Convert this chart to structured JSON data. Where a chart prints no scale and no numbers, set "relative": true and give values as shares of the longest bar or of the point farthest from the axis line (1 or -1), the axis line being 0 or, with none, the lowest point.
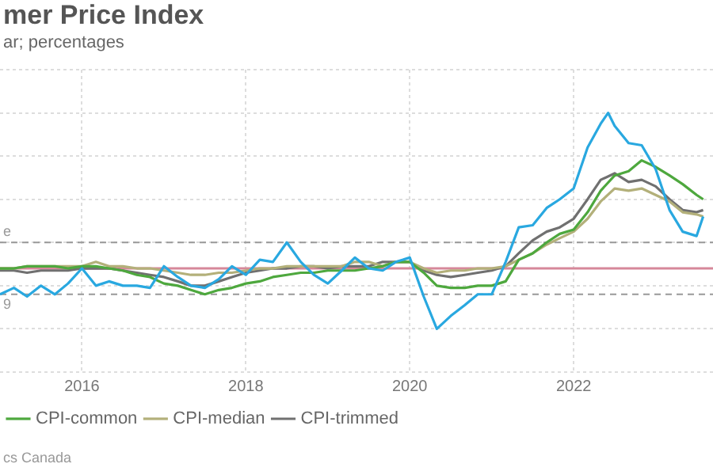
{
  "chart_data": {
    "type": "line",
    "title": "mer Price Index",
    "subtitle": "ar; percentages",
    "annotations": [
      "cs Canada",
      {
        "text": "9",
        "x": 2015.0,
        "y": 0.16
      }
    ],
    "relative": true,
    "x": [
      2015.0,
      2015.17,
      2015.33,
      2015.5,
      2015.67,
      2015.83,
      2016.0,
      2016.17,
      2016.33,
      2016.5,
      2016.67,
      2016.83,
      2017.0,
      2017.17,
      2017.33,
      2017.5,
      2017.67,
      2017.83,
      2018.0,
      2018.17,
      2018.33,
      2018.5,
      2018.67,
      2018.83,
      2019.0,
      2019.17,
      2019.33,
      2019.5,
      2019.67,
      2019.83,
      2020.0,
      2020.17,
      2020.33,
      2020.5,
      2020.67,
      2020.83,
      2021.0,
      2021.17,
      2021.33,
      2021.5,
      2021.67,
      2021.83,
      2022.0,
      2022.17,
      2022.33,
      2022.5,
      2022.67,
      2022.83,
      2023.0,
      2023.17,
      2023.33,
      2023.5,
      2023.58
    ],
    "xlim": [
      2015.0,
      2023.7
    ],
    "xticks": [
      2016,
      2018,
      2020,
      2022
    ],
    "series": [
      {
        "color": "#29a8e0",
        "x": [
          2015.0,
          2015.17,
          2015.33,
          2015.5,
          2015.67,
          2015.83,
          2016.0,
          2016.17,
          2016.33,
          2016.5,
          2016.67,
          2016.83,
          2017.0,
          2017.17,
          2017.33,
          2017.5,
          2017.67,
          2017.83,
          2018.0,
          2018.17,
          2018.33,
          2018.5,
          2018.67,
          2018.83,
          2019.0,
          2019.17,
          2019.33,
          2019.5,
          2019.67,
          2019.83,
          2020.0,
          2020.17,
          2020.33,
          2020.5,
          2020.67,
          2020.83,
          2021.0,
          2021.17,
          2021.33,
          2021.5,
          2021.67,
          2021.83,
          2022.0,
          2022.17,
          2022.33,
          2022.42,
          2022.5,
          2022.67,
          2022.83,
          2023.0,
          2023.17,
          2023.33,
          2023.5,
          2023.58
        ],
        "values": [
          0.16,
          0.19,
          0.15,
          0.2,
          0.16,
          0.21,
          0.28,
          0.2,
          0.22,
          0.2,
          0.2,
          0.19,
          0.29,
          0.24,
          0.2,
          0.19,
          0.23,
          0.29,
          0.25,
          0.32,
          0.31,
          0.4,
          0.31,
          0.25,
          0.21,
          0.27,
          0.33,
          0.28,
          0.27,
          0.31,
          0.33,
          0.15,
          0,
          0.06,
          0.11,
          0.16,
          0.16,
          0.31,
          0.47,
          0.48,
          0.56,
          0.6,
          0.65,
          0.84,
          0.95,
          1,
          0.94,
          0.86,
          0.85,
          0.74,
          0.55,
          0.45,
          0.43,
          0.52
        ]
      },
      {
        "name": "CPI-common",
        "color": "#4ea83e",
        "values": [
          0.28,
          0.28,
          0.29,
          0.29,
          0.29,
          0.28,
          0.29,
          0.29,
          0.28,
          0.27,
          0.25,
          0.24,
          0.21,
          0.2,
          0.18,
          0.16,
          0.18,
          0.19,
          0.21,
          0.22,
          0.24,
          0.25,
          0.26,
          0.26,
          0.27,
          0.27,
          0.27,
          0.28,
          0.29,
          0.31,
          0.31,
          0.26,
          0.2,
          0.19,
          0.19,
          0.2,
          0.2,
          0.22,
          0.32,
          0.35,
          0.4,
          0.44,
          0.46,
          0.54,
          0.64,
          0.71,
          0.73,
          0.78,
          0.75,
          0.71,
          0.67,
          0.62,
          0.6
        ]
      },
      {
        "name": "CPI-median",
        "color": "#b3b07a",
        "values": [
          0.28,
          0.28,
          0.29,
          0.29,
          0.29,
          0.29,
          0.29,
          0.31,
          0.29,
          0.29,
          0.28,
          0.28,
          0.27,
          0.26,
          0.25,
          0.25,
          0.26,
          0.26,
          0.27,
          0.28,
          0.28,
          0.29,
          0.29,
          0.29,
          0.29,
          0.29,
          0.31,
          0.31,
          0.29,
          0.31,
          0.31,
          0.28,
          0.26,
          0.27,
          0.27,
          0.28,
          0.28,
          0.29,
          0.32,
          0.35,
          0.39,
          0.42,
          0.45,
          0.51,
          0.59,
          0.65,
          0.64,
          0.65,
          0.62,
          0.59,
          0.54,
          0.53,
          0.52
        ]
      },
      {
        "name": "CPI-trimmed",
        "color": "#707070",
        "values": [
          0.27,
          0.27,
          0.26,
          0.27,
          0.27,
          0.27,
          0.28,
          0.28,
          0.28,
          0.27,
          0.26,
          0.25,
          0.24,
          0.22,
          0.2,
          0.2,
          0.22,
          0.24,
          0.26,
          0.27,
          0.28,
          0.28,
          0.29,
          0.29,
          0.28,
          0.29,
          0.29,
          0.29,
          0.31,
          0.31,
          0.31,
          0.27,
          0.25,
          0.24,
          0.25,
          0.26,
          0.27,
          0.29,
          0.35,
          0.41,
          0.45,
          0.47,
          0.51,
          0.6,
          0.69,
          0.72,
          0.68,
          0.69,
          0.66,
          0.6,
          0.55,
          0.54,
          0.55
        ]
      }
    ],
    "ref_lines": [
      {
        "axis": "y",
        "value": 0.28,
        "color": "#d6889a",
        "line_style": "solid"
      },
      {
        "axis": "y",
        "value": 0.4,
        "label": "e",
        "color": "#999999",
        "line_style": "dashed"
      },
      {
        "axis": "y",
        "value": 0.16,
        "color": "#999999",
        "line_style": "dashed"
      }
    ],
    "grid": true,
    "legend": "bottom",
    "marker": "none",
    "line_style": "solid"
  }
}
